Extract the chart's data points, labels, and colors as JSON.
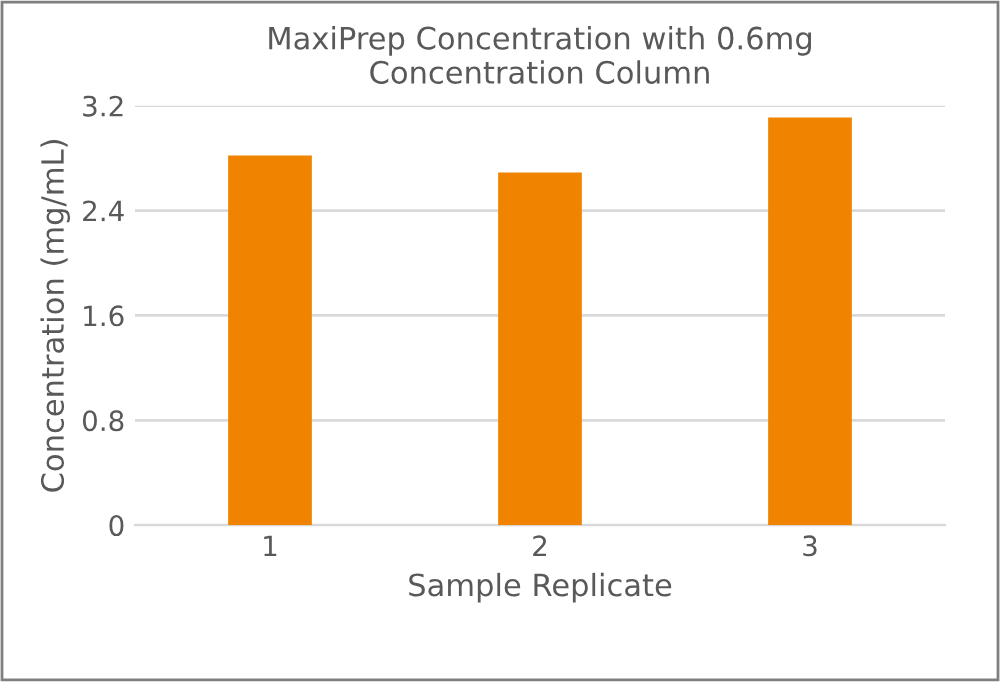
{
  "chart_data": {
    "type": "bar",
    "title": "MaxiPrep Concentration with 0.6mg\nConcentration Column",
    "xlabel": "Sample Replicate",
    "ylabel": "Concentration (mg/mL)",
    "categories": [
      "1",
      "2",
      "3"
    ],
    "values": [
      2.82,
      2.69,
      3.11
    ],
    "color": "#f08300",
    "ylim": [
      0,
      3.2
    ],
    "yticks": [
      0,
      0.8,
      1.6,
      2.4,
      3.2
    ],
    "grid": "y"
  }
}
